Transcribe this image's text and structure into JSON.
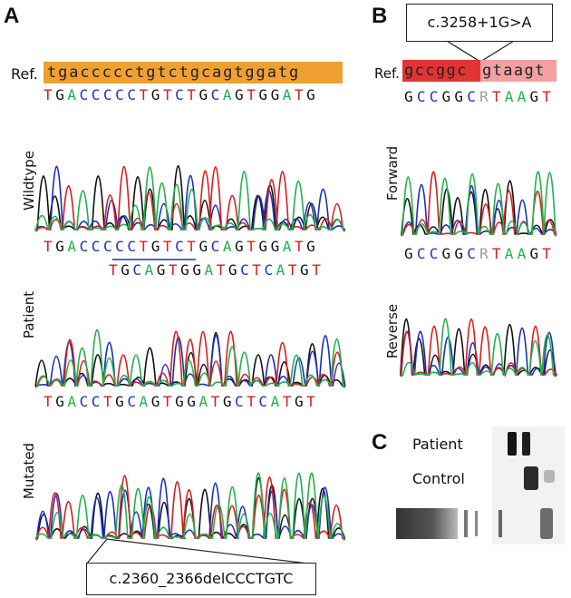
{
  "colors": {
    "A": "#22b14c",
    "C": "#1a2fc0",
    "G": "#111111",
    "T": "#d41f1f",
    "R": "#9a9a9a",
    "ref_orange": "#f0a030",
    "ref_red": "#e23434",
    "ref_pink": "#f2a0a0"
  },
  "panel_a": {
    "letter": "A",
    "ref_label": "Ref.",
    "ref_seq": "tgaccccctgtctgcagtggatg",
    "wildtype": {
      "label": "Wildtype",
      "seq": "TGACCCCCTGTCTGCAGTGGATG"
    },
    "patient": {
      "label": "Patient",
      "seq": "TGACCCCCTGTCTGCAGTGGATG",
      "seq2": "TGCAGTGGATGCTCATGT"
    },
    "mutated": {
      "label": "Mutated",
      "seq": "TGACCTGCAGTGGATGCTCATGT"
    },
    "callout": "c.2360_2366delCCCTGTC"
  },
  "panel_b": {
    "letter": "B",
    "callout": "c.3258+1G>A",
    "ref_label": "Ref.",
    "ref_seq_exon": "gccggc",
    "ref_seq_intron": "gtaagt",
    "forward": {
      "label": "Forward",
      "seq": "GCCGGCRTAAGT"
    },
    "reverse": {
      "label": "Reverse",
      "seq": "GCCGGCRTAAGT"
    }
  },
  "panel_c": {
    "letter": "C",
    "patient_label": "Patient",
    "control_label": "Control"
  }
}
